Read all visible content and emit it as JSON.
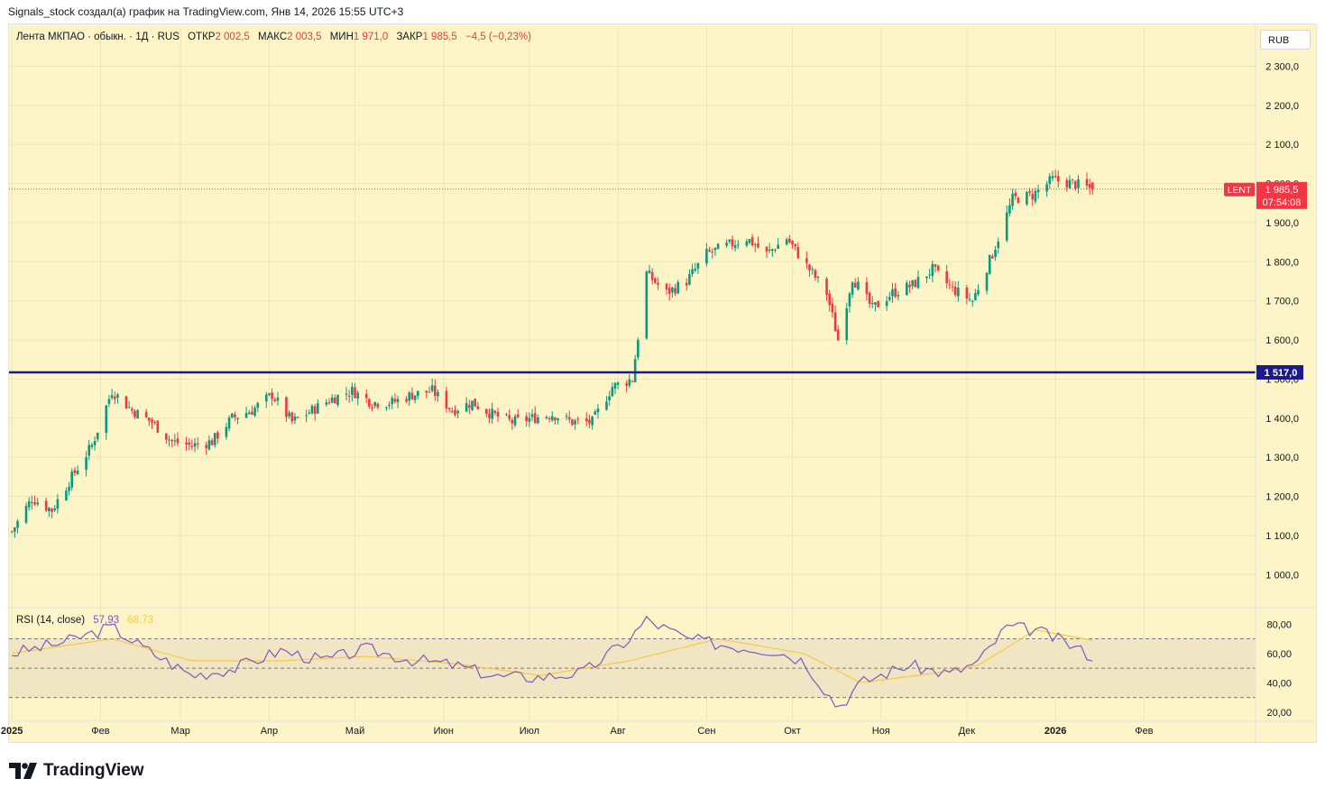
{
  "header": {
    "text": "Signals_stock создал(а) график на TradingView.com, Янв 14, 2026 15:55 UTC+3"
  },
  "legend": {
    "symbol": "Лента МКПАО · обыкн. · 1Д · RUS",
    "open_label": "ОТКР",
    "open": "2 002,5",
    "high_label": "МАКС",
    "high": "2 003,5",
    "low_label": "МИН",
    "low": "1 971,0",
    "close_label": "ЗАКР",
    "close": "1 985,5",
    "change": "−4,5 (−0,23%)"
  },
  "currency": "RUB",
  "price_tag": {
    "ticker": "LENT",
    "price": "1 985,5",
    "countdown": "07:54:08",
    "color": "#f23645"
  },
  "level_tag": {
    "price": "1 517,0",
    "color": "#1a1a8c"
  },
  "rsi_legend": {
    "label": "RSI (14, close)",
    "rsi": "57,93",
    "ma": "68,73"
  },
  "logo": {
    "text": "TradingView"
  },
  "chart_data": [
    {
      "type": "candlestick",
      "symbol": "LENT",
      "currency": "RUB",
      "y_ticks": [
        "2 300,0",
        "2 200,0",
        "2 100,0",
        "2 000,0",
        "1 900,0",
        "1 800,0",
        "1 700,0",
        "1 600,0",
        "1 500,0",
        "1 400,0",
        "1 300,0",
        "1 200,0",
        "1 100,0",
        "1 000,0"
      ],
      "y_tick_values": [
        2300,
        2200,
        2100,
        2000,
        1900,
        1800,
        1700,
        1600,
        1500,
        1400,
        1300,
        1200,
        1100,
        1000
      ],
      "ylim": [
        920,
        2400
      ],
      "x_ticks": [
        "2025",
        "Фев",
        "Мар",
        "Апр",
        "Май",
        "Июн",
        "Июл",
        "Авг",
        "Сен",
        "Окт",
        "Ноя",
        "Дек",
        "2026",
        "Фев"
      ],
      "x_tick_dates": [
        "2025-01-01",
        "2025-02-01",
        "2025-03-01",
        "2025-04-01",
        "2025-05-01",
        "2025-06-01",
        "2025-07-01",
        "2025-08-01",
        "2025-09-01",
        "2025-10-01",
        "2025-11-01",
        "2025-12-01",
        "2026-01-01",
        "2026-02-01"
      ],
      "x_range": [
        "2024-12-31",
        "2026-03-12"
      ],
      "horizontal_level": 1517.0,
      "last_price": 1985.5,
      "last_ohlc": {
        "open": 2002.5,
        "high": 2003.5,
        "low": 1971.0,
        "close": 1985.5
      },
      "up_color": "#089981",
      "down_color": "#f23645",
      "level_color": "#1a1a8c",
      "closes_approx": [
        {
          "date": "2025-01-01",
          "close": 1110
        },
        {
          "date": "2025-01-08",
          "close": 1195
        },
        {
          "date": "2025-01-15",
          "close": 1165
        },
        {
          "date": "2025-01-22",
          "close": 1250
        },
        {
          "date": "2025-01-29",
          "close": 1330
        },
        {
          "date": "2025-02-05",
          "close": 1470
        },
        {
          "date": "2025-02-12",
          "close": 1420
        },
        {
          "date": "2025-02-19",
          "close": 1390
        },
        {
          "date": "2025-02-26",
          "close": 1340
        },
        {
          "date": "2025-03-05",
          "close": 1330
        },
        {
          "date": "2025-03-12",
          "close": 1340
        },
        {
          "date": "2025-03-19",
          "close": 1400
        },
        {
          "date": "2025-03-26",
          "close": 1420
        },
        {
          "date": "2025-04-02",
          "close": 1460
        },
        {
          "date": "2025-04-09",
          "close": 1390
        },
        {
          "date": "2025-04-16",
          "close": 1420
        },
        {
          "date": "2025-04-23",
          "close": 1450
        },
        {
          "date": "2025-04-30",
          "close": 1470
        },
        {
          "date": "2025-05-07",
          "close": 1440
        },
        {
          "date": "2025-05-14",
          "close": 1440
        },
        {
          "date": "2025-05-21",
          "close": 1460
        },
        {
          "date": "2025-05-28",
          "close": 1470
        },
        {
          "date": "2025-06-04",
          "close": 1420
        },
        {
          "date": "2025-06-11",
          "close": 1440
        },
        {
          "date": "2025-06-18",
          "close": 1410
        },
        {
          "date": "2025-06-25",
          "close": 1390
        },
        {
          "date": "2025-07-02",
          "close": 1400
        },
        {
          "date": "2025-07-09",
          "close": 1410
        },
        {
          "date": "2025-07-16",
          "close": 1390
        },
        {
          "date": "2025-07-23",
          "close": 1390
        },
        {
          "date": "2025-07-30",
          "close": 1480
        },
        {
          "date": "2025-08-06",
          "close": 1500
        },
        {
          "date": "2025-08-11",
          "close": 1770
        },
        {
          "date": "2025-08-18",
          "close": 1720
        },
        {
          "date": "2025-08-25",
          "close": 1750
        },
        {
          "date": "2025-09-01",
          "close": 1820
        },
        {
          "date": "2025-09-08",
          "close": 1840
        },
        {
          "date": "2025-09-15",
          "close": 1860
        },
        {
          "date": "2025-09-22",
          "close": 1820
        },
        {
          "date": "2025-09-29",
          "close": 1860
        },
        {
          "date": "2025-10-06",
          "close": 1790
        },
        {
          "date": "2025-10-13",
          "close": 1720
        },
        {
          "date": "2025-10-17",
          "close": 1600
        },
        {
          "date": "2025-10-22",
          "close": 1760
        },
        {
          "date": "2025-10-29",
          "close": 1680
        },
        {
          "date": "2025-11-05",
          "close": 1720
        },
        {
          "date": "2025-11-12",
          "close": 1740
        },
        {
          "date": "2025-11-19",
          "close": 1780
        },
        {
          "date": "2025-11-26",
          "close": 1730
        },
        {
          "date": "2025-12-03",
          "close": 1700
        },
        {
          "date": "2025-12-10",
          "close": 1820
        },
        {
          "date": "2025-12-17",
          "close": 1960
        },
        {
          "date": "2025-12-24",
          "close": 1970
        },
        {
          "date": "2025-12-31",
          "close": 2010
        },
        {
          "date": "2026-01-07",
          "close": 2000
        },
        {
          "date": "2026-01-14",
          "close": 1985.5
        }
      ]
    },
    {
      "type": "line",
      "name": "RSI (14, close)",
      "y_ticks": [
        "80,00",
        "60,00",
        "40,00",
        "20,00"
      ],
      "y_tick_values": [
        80,
        60,
        40,
        20
      ],
      "ylim": [
        15,
        90
      ],
      "bands": [
        70,
        50,
        30
      ],
      "current_rsi": 57.93,
      "current_ma": 68.73,
      "rsi_color": "#7e57c2",
      "ma_color": "#f7c948",
      "series": [
        {
          "name": "RSI",
          "x": [
            "2025-01-01",
            "2025-01-20",
            "2025-02-05",
            "2025-02-15",
            "2025-03-05",
            "2025-03-20",
            "2025-04-05",
            "2025-04-20",
            "2025-05-05",
            "2025-05-20",
            "2025-06-05",
            "2025-06-20",
            "2025-07-05",
            "2025-07-20",
            "2025-08-05",
            "2025-08-11",
            "2025-08-25",
            "2025-09-10",
            "2025-09-25",
            "2025-10-05",
            "2025-10-17",
            "2025-10-25",
            "2025-11-10",
            "2025-11-25",
            "2025-12-05",
            "2025-12-15",
            "2025-12-25",
            "2026-01-05",
            "2026-01-14"
          ],
          "values": [
            60,
            68,
            78,
            65,
            45,
            50,
            62,
            55,
            63,
            56,
            52,
            44,
            44,
            47,
            70,
            83,
            70,
            65,
            62,
            55,
            23,
            40,
            52,
            46,
            54,
            78,
            76,
            67,
            58
          ]
        },
        {
          "name": "MA",
          "x": [
            "2025-01-01",
            "2025-02-05",
            "2025-03-05",
            "2025-04-05",
            "2025-05-05",
            "2025-06-05",
            "2025-07-05",
            "2025-08-05",
            "2025-09-05",
            "2025-10-05",
            "2025-10-25",
            "2025-11-25",
            "2025-12-05",
            "2025-12-25",
            "2026-01-14"
          ],
          "values": [
            60,
            70,
            55,
            55,
            58,
            53,
            45,
            55,
            70,
            60,
            40,
            48,
            52,
            76,
            69
          ]
        }
      ]
    }
  ]
}
